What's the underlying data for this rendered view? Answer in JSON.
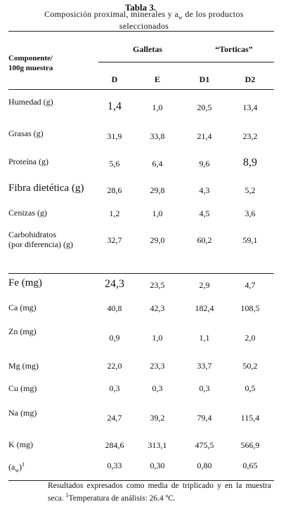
{
  "table": {
    "title": "Tabla 3.",
    "subtitle_pre": "Composición proximal, minerales y a",
    "subtitle_sub": "w",
    "subtitle_post": " de los productos seleccionados",
    "header": {
      "component_line1": "Componente/",
      "component_line2": "100g muestra",
      "group1": "Galletas",
      "group2": "“Torticas”",
      "cols": [
        "D",
        "E",
        "D1",
        "D2"
      ]
    },
    "rows": [
      {
        "label": "Humedad (g)",
        "values": [
          "1,4",
          "1,0",
          "20,5",
          "13,4"
        ]
      },
      {
        "label": "Grasas (g)",
        "values": [
          "31,9",
          "33,8",
          "21,4",
          "23,2"
        ]
      },
      {
        "label": "Proteína (g)",
        "values": [
          "5,6",
          "6,4",
          "9,6",
          "8,9"
        ]
      },
      {
        "label": "Fibra dietética (g)",
        "values": [
          "28,6",
          "29,8",
          "4,3",
          "5,2"
        ]
      },
      {
        "label": "Cenizas (g)",
        "values": [
          "1,2",
          "1,0",
          "4,5",
          "3,6"
        ]
      },
      {
        "label_line1": "Carbohidratos",
        "label_line2": "(por diferencia) (g)",
        "values": [
          "32,7",
          "29,0",
          "60,2",
          "59,1"
        ]
      },
      {
        "label": "Fe (mg)",
        "values": [
          "24,3",
          "23,5",
          "2,9",
          "4,7"
        ]
      },
      {
        "label": "Ca (mg)",
        "values": [
          "40,8",
          "42,3",
          "182,4",
          "108,5"
        ]
      },
      {
        "label": "Zn (mg)",
        "values": [
          "0,9",
          "1,0",
          "1,1",
          "2,0"
        ]
      },
      {
        "label": "Mg (mg)",
        "values": [
          "22,0",
          "23,3",
          "33,7",
          "50,2"
        ]
      },
      {
        "label": "Cu (mg)",
        "values": [
          "0,3",
          "0,3",
          "0,3",
          "0,5"
        ]
      },
      {
        "label": "Na (mg)",
        "values": [
          "24,7",
          "39,2",
          "79,4",
          "115,4"
        ]
      },
      {
        "label": "K (mg)",
        "values": [
          "284,6",
          "313,1",
          "475,5",
          "566,9"
        ]
      },
      {
        "label_pre": "(a",
        "label_sub": "w",
        "label_post": ")",
        "label_sup": "1",
        "values": [
          "0,33",
          "0,30",
          "0,80",
          "0,65"
        ]
      }
    ],
    "footnote_pre": "Resultados expresados como media de triplicado y en la muestra seca. ",
    "footnote_sup": "1",
    "footnote_post": "Temperatura de análisis: 26.4 ºC."
  }
}
